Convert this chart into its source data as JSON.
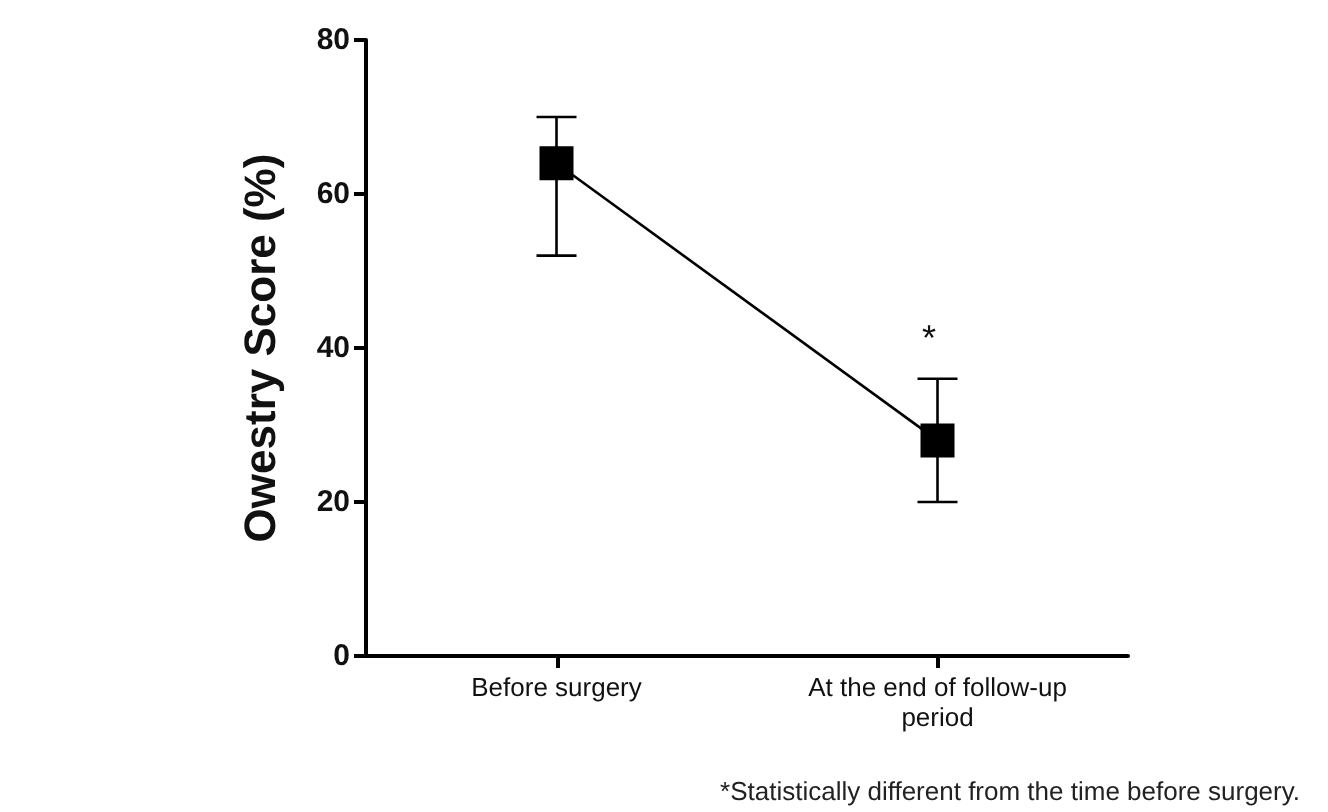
{
  "chart_data": {
    "type": "line",
    "ylabel": "Owestry Score (%)",
    "categories": [
      "Before surgery",
      "At the end of follow-up\nperiod"
    ],
    "series": [
      {
        "color": "#000000",
        "values": [
          64,
          28
        ],
        "errors": [
          [
            52,
            70
          ],
          [
            20,
            36
          ]
        ]
      }
    ],
    "ylim": [
      0,
      80
    ],
    "yticks": [
      0,
      20,
      40,
      60,
      80
    ],
    "grid": false,
    "marker": "square",
    "line_style": "solid",
    "annotations": [
      "*",
      "*Statistically different from the time before surgery."
    ]
  }
}
